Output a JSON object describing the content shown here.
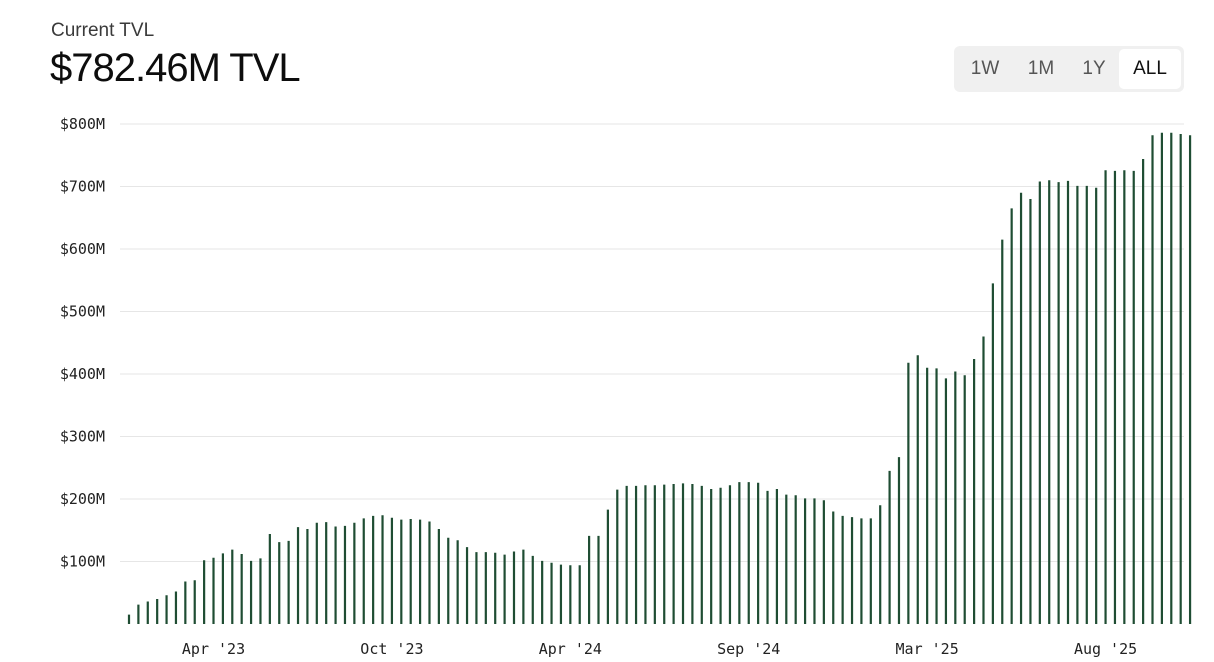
{
  "header": {
    "subtitle": "Current TVL",
    "headline": "$782.46M TVL"
  },
  "range_selector": {
    "options": [
      "1W",
      "1M",
      "1Y",
      "ALL"
    ],
    "selected": "ALL"
  },
  "colors": {
    "bar": "#1f4d33",
    "grid": "#e6e6e6"
  },
  "chart_data": {
    "type": "bar",
    "title": "",
    "xlabel": "",
    "ylabel": "",
    "ylim": [
      0,
      800
    ],
    "y_unit": "USD millions",
    "y_ticks": [
      {
        "value": 100,
        "label": "$100M"
      },
      {
        "value": 200,
        "label": "$200M"
      },
      {
        "value": 300,
        "label": "$300M"
      },
      {
        "value": 400,
        "label": "$400M"
      },
      {
        "value": 500,
        "label": "$500M"
      },
      {
        "value": 600,
        "label": "$600M"
      },
      {
        "value": 700,
        "label": "$700M"
      },
      {
        "value": 800,
        "label": "$800M"
      }
    ],
    "x_ticks": [
      {
        "index": 9,
        "label": "Apr '23"
      },
      {
        "index": 28,
        "label": "Oct '23"
      },
      {
        "index": 47,
        "label": "Apr '24"
      },
      {
        "index": 66,
        "label": "Sep '24"
      },
      {
        "index": 85,
        "label": "Mar '25"
      },
      {
        "index": 104,
        "label": "Aug '25"
      }
    ],
    "grid": true,
    "legend": "none",
    "values": [
      15,
      31,
      36,
      40,
      46,
      52,
      68,
      70,
      102,
      106,
      113,
      119,
      112,
      101,
      105,
      144,
      131,
      133,
      155,
      152,
      162,
      163,
      156,
      157,
      162,
      169,
      173,
      174,
      170,
      167,
      168,
      167,
      164,
      152,
      138,
      134,
      123,
      115,
      115,
      114,
      111,
      116,
      119,
      109,
      101,
      98,
      95,
      94,
      94,
      141,
      141,
      183,
      215,
      221,
      221,
      222,
      222,
      223,
      224,
      225,
      224,
      221,
      216,
      218,
      222,
      227,
      227,
      226,
      213,
      216,
      207,
      206,
      201,
      201,
      198,
      180,
      173,
      171,
      169,
      169,
      190,
      245,
      267,
      418,
      430,
      410,
      409,
      393,
      404,
      398,
      424,
      460,
      545,
      615,
      665,
      690,
      680,
      708,
      710,
      707,
      709,
      701,
      701,
      698,
      726,
      725,
      726,
      725,
      744,
      782,
      786,
      786,
      784,
      782
    ]
  }
}
